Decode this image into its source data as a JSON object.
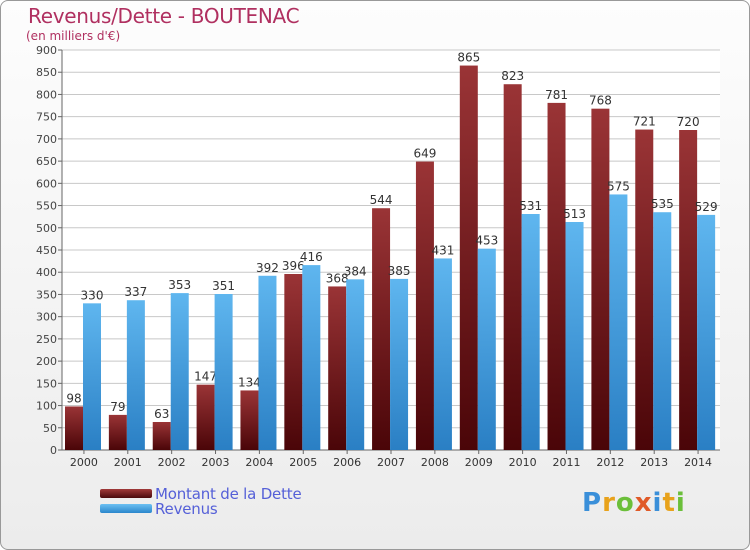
{
  "chart_data": {
    "type": "bar",
    "title": "Revenus/Dette - BOUTENAC",
    "subtitle": "(en milliers d'€)",
    "categories": [
      "2000",
      "2001",
      "2002",
      "2003",
      "2004",
      "2005",
      "2006",
      "2007",
      "2008",
      "2009",
      "2010",
      "2011",
      "2012",
      "2013",
      "2014"
    ],
    "series": [
      {
        "name": "Montant de la Dette",
        "color": "#7a1f22",
        "values": [
          98,
          79,
          63,
          147,
          134,
          396,
          368,
          544,
          649,
          865,
          823,
          781,
          768,
          721,
          720
        ]
      },
      {
        "name": "Revenus",
        "color": "#3a9be0",
        "values": [
          330,
          337,
          353,
          351,
          392,
          416,
          384,
          385,
          431,
          453,
          531,
          513,
          575,
          535,
          529
        ]
      }
    ],
    "ylim": [
      0,
      900
    ],
    "ytick_step": 50,
    "grid": true,
    "legend_position": "bottom-left"
  },
  "logo": {
    "letters": [
      "P",
      "r",
      "o",
      "x",
      "i",
      "t",
      "i"
    ]
  }
}
